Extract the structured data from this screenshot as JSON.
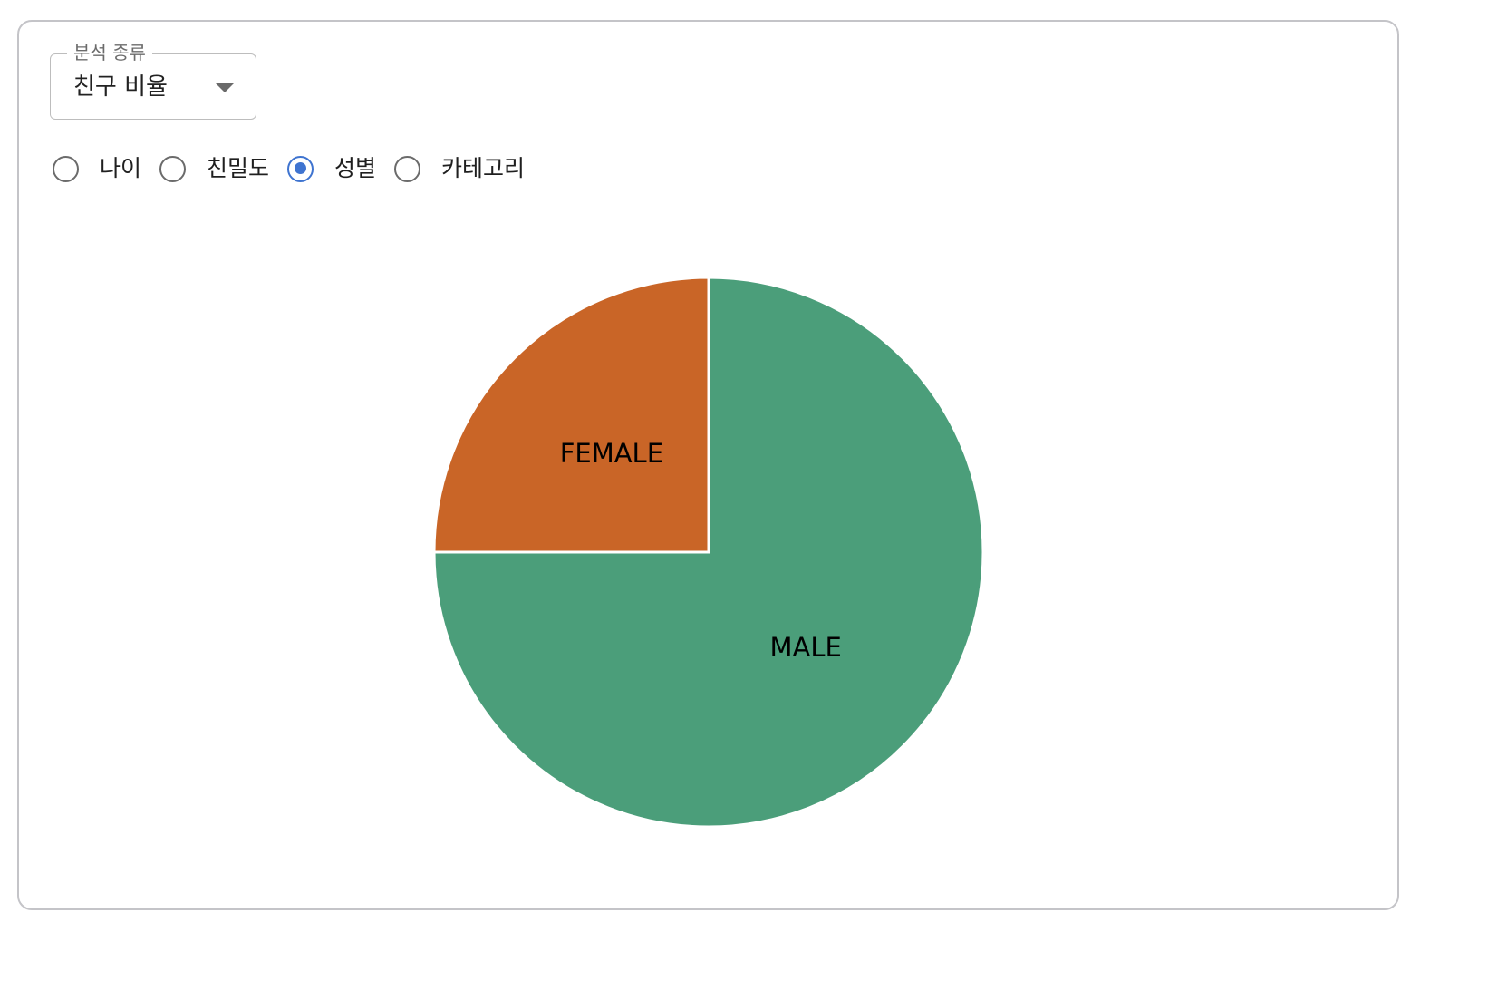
{
  "select": {
    "legend": "분석 종류",
    "value": "친구 비율"
  },
  "radios": [
    {
      "label": "나이",
      "checked": false
    },
    {
      "label": "친밀도",
      "checked": false
    },
    {
      "label": "성별",
      "checked": true
    },
    {
      "label": "카테고리",
      "checked": false
    }
  ],
  "colors": {
    "accent": "#3f74d0",
    "male": "#4b9e7a",
    "female": "#c96527"
  },
  "chart_data": {
    "type": "pie",
    "slices": [
      {
        "label": "MALE",
        "value": 75,
        "color": "#4b9e7a"
      },
      {
        "label": "FEMALE",
        "value": 25,
        "color": "#c96527"
      }
    ]
  }
}
